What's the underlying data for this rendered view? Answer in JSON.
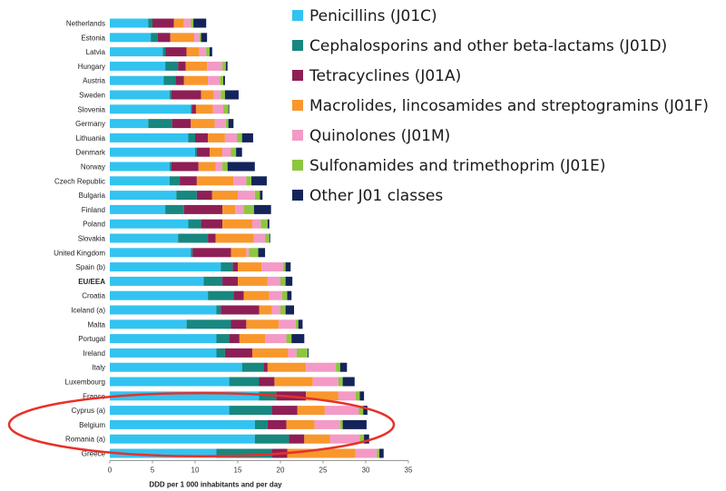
{
  "chart_data": {
    "type": "bar",
    "orientation": "horizontal",
    "stacked": true,
    "title": "",
    "xlabel": "DDD per 1 000 inhabitants and per day",
    "ylabel": "",
    "xlim": [
      0,
      35
    ],
    "xticks": [
      0,
      5,
      10,
      15,
      20,
      25,
      30,
      35
    ],
    "grid": false,
    "legend_position": "top-right",
    "categories": [
      "Netherlands",
      "Estonia",
      "Latvia",
      "Hungary",
      "Austria",
      "Sweden",
      "Slovenia",
      "Germany",
      "Lithuania",
      "Denmark",
      "Norway",
      "Czech Republic",
      "Bulgaria",
      "Finland",
      "Poland",
      "Slovakia",
      "United Kingdom",
      "Spain (b)",
      "EU/EEA",
      "Croatia",
      "Iceland (a)",
      "Malta",
      "Portugal",
      "Ireland",
      "Italy",
      "Luxembourg",
      "France",
      "Cyprus (a)",
      "Belgium",
      "Romania (a)",
      "Greece"
    ],
    "bold_categories": [
      "EU/EEA"
    ],
    "highlighted_categories": [
      "Cyprus (a)",
      "Belgium",
      "Romania (a)"
    ],
    "series": [
      {
        "name": "Penicillins (J01C)",
        "color": "#33c3f0",
        "values": [
          4.5,
          4.8,
          6.2,
          6.5,
          6.3,
          7.0,
          9.5,
          4.5,
          9.2,
          10.0,
          7.0,
          7.0,
          7.8,
          6.5,
          9.2,
          8.0,
          9.5,
          13.0,
          11.0,
          11.5,
          12.5,
          9.0,
          12.5,
          12.5,
          15.5,
          14.0,
          17.5,
          14.0,
          17.0,
          17.0,
          12.5
        ]
      },
      {
        "name": "Cephalosporins and other beta-lactams (J01D)",
        "color": "#17877f",
        "values": [
          0.5,
          0.8,
          0.3,
          1.5,
          1.4,
          0.2,
          0.1,
          2.8,
          0.8,
          0.2,
          0.2,
          1.2,
          2.4,
          2.2,
          1.5,
          3.5,
          0.2,
          1.4,
          2.2,
          3.0,
          0.5,
          5.2,
          1.5,
          1.0,
          2.5,
          3.5,
          2.0,
          5.0,
          1.5,
          4.0,
          6.5
        ]
      },
      {
        "name": "Tetracyclines (J01A)",
        "color": "#8e1f55",
        "values": [
          2.5,
          1.5,
          2.5,
          0.9,
          1.0,
          3.5,
          0.5,
          2.2,
          1.5,
          1.5,
          3.2,
          2.0,
          1.8,
          4.5,
          2.5,
          0.9,
          4.5,
          0.6,
          1.8,
          1.2,
          4.5,
          1.8,
          1.2,
          3.2,
          0.5,
          1.8,
          3.5,
          3.0,
          2.2,
          1.8,
          1.8
        ]
      },
      {
        "name": "Macrolides, lincosamides and streptogramins (J01F)",
        "color": "#f8972c",
        "values": [
          1.2,
          2.8,
          1.5,
          2.5,
          2.8,
          1.5,
          2.0,
          2.8,
          2.0,
          1.5,
          2.0,
          4.3,
          3.0,
          1.5,
          3.5,
          4.5,
          1.8,
          2.8,
          3.5,
          3.0,
          1.5,
          3.8,
          3.0,
          4.2,
          4.5,
          4.5,
          3.8,
          3.2,
          3.3,
          3.0,
          8.0
        ]
      },
      {
        "name": "Quinolones (J01M)",
        "color": "#f39ac7",
        "values": [
          0.8,
          0.6,
          0.8,
          1.8,
          1.4,
          0.8,
          1.2,
          1.3,
          1.4,
          1.0,
          0.8,
          1.5,
          2.0,
          1.0,
          1.0,
          1.3,
          0.3,
          2.5,
          1.5,
          1.5,
          1.0,
          2.0,
          2.5,
          1.0,
          3.5,
          3.0,
          2.0,
          4.0,
          3.0,
          3.5,
          2.5
        ]
      },
      {
        "name": "Sulfonamides and trimethoprim (J01E)",
        "color": "#8dc63f",
        "values": [
          0.3,
          0.2,
          0.4,
          0.4,
          0.4,
          0.5,
          0.6,
          0.3,
          0.6,
          0.6,
          0.6,
          0.6,
          0.6,
          1.2,
          0.8,
          0.5,
          1.1,
          0.3,
          0.6,
          0.6,
          0.6,
          0.3,
          0.6,
          1.3,
          0.5,
          0.5,
          0.5,
          0.5,
          0.3,
          0.5,
          0.3
        ]
      },
      {
        "name": "Other J01 classes",
        "color": "#14245a",
        "values": [
          1.5,
          0.7,
          0.3,
          0.2,
          0.2,
          1.6,
          0.1,
          0.6,
          1.3,
          0.7,
          3.2,
          1.8,
          0.3,
          2.0,
          0.2,
          0.1,
          0.8,
          0.6,
          0.8,
          0.5,
          1.0,
          0.5,
          1.5,
          0.1,
          0.8,
          1.4,
          0.5,
          0.5,
          2.8,
          0.6,
          0.5
        ]
      }
    ]
  }
}
